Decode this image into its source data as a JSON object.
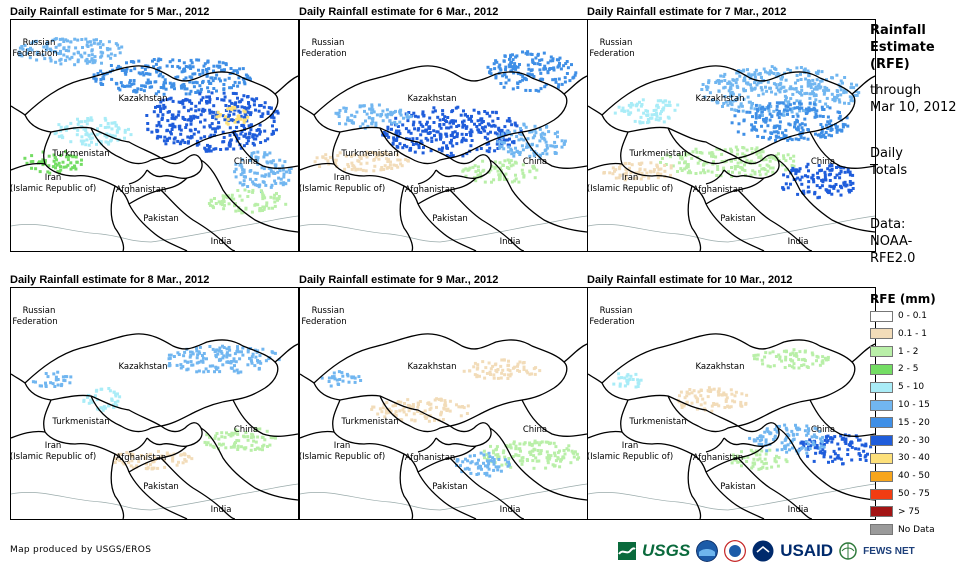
{
  "panels": [
    {
      "title": "Daily Rainfall estimate for 5 Mar., 2012"
    },
    {
      "title": "Daily Rainfall estimate for 6 Mar., 2012"
    },
    {
      "title": "Daily Rainfall estimate for 7 Mar., 2012"
    },
    {
      "title": "Daily Rainfall estimate for 8 Mar., 2012"
    },
    {
      "title": "Daily Rainfall estimate for 9 Mar., 2012"
    },
    {
      "title": "Daily Rainfall estimate for 10 Mar., 2012"
    }
  ],
  "map_labels": {
    "russia_1": "Russian",
    "russia_2": "Federation",
    "kazakhstan": "Kazakhstan",
    "turkmenistan": "Turkmenistan",
    "iran_1": "Iran",
    "iran_2": "(Islamic Republic of)",
    "afghanistan": "Afghanistan",
    "pakistan": "Pakistan",
    "china": "China",
    "india": "India"
  },
  "sidebar": {
    "title_1": "Rainfall",
    "title_2": "Estimate",
    "title_3": "(RFE)",
    "through_1": "through",
    "through_2": "Mar 10, 2012",
    "totals_1": "Daily",
    "totals_2": "Totals",
    "data_1": "Data:",
    "data_2": "NOAA-",
    "data_3": "RFE2.0"
  },
  "legend": {
    "title": "RFE (mm)",
    "items": [
      {
        "label": "0 - 0.1",
        "color": "#ffffff"
      },
      {
        "label": "0.1 - 1",
        "color": "#f2dcb9"
      },
      {
        "label": "1 - 2",
        "color": "#b9efa8"
      },
      {
        "label": "2 - 5",
        "color": "#74dd64"
      },
      {
        "label": "5 - 10",
        "color": "#a9ecf7"
      },
      {
        "label": "10 - 15",
        "color": "#71b6f0"
      },
      {
        "label": "15 - 20",
        "color": "#3f8fe6"
      },
      {
        "label": "20 - 30",
        "color": "#1f5ddb"
      },
      {
        "label": "30 - 40",
        "color": "#fde07a"
      },
      {
        "label": "40 - 50",
        "color": "#f7a51c"
      },
      {
        "label": "50 - 75",
        "color": "#f23c12"
      },
      {
        "label": "> 75",
        "color": "#a31414"
      },
      {
        "label": "No Data",
        "color": "#9a9a9a"
      }
    ]
  },
  "footer": {
    "credit": "Map produced by USGS/EROS",
    "logo_usgs": "USGS",
    "logo_usaid": "USAID",
    "logo_fews": "FEWS NET"
  },
  "rain_intensity": [
    {
      "panel": 1,
      "rain": "heavy"
    },
    {
      "panel": 2,
      "rain": "heavy"
    },
    {
      "panel": 3,
      "rain": "moderate"
    },
    {
      "panel": 4,
      "rain": "light"
    },
    {
      "panel": 5,
      "rain": "light"
    },
    {
      "panel": 6,
      "rain": "light"
    }
  ]
}
